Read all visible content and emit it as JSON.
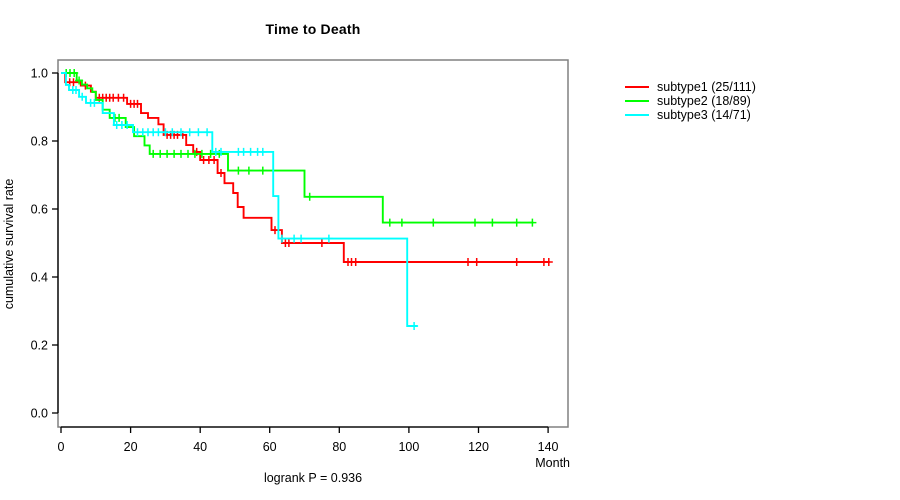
{
  "chart_data": {
    "type": "line",
    "subtype": "kaplan-meier-step",
    "title": "Time to Death",
    "xlabel": "Month",
    "ylabel": "cumulative survival rate",
    "annotation": "logrank P = 0.936",
    "grid": false,
    "legend_position": "right-outside",
    "xlim": [
      0,
      146
    ],
    "ylim": [
      0,
      1.0
    ],
    "x_ticks": [
      0,
      20,
      40,
      60,
      80,
      100,
      120,
      140
    ],
    "y_ticks": [
      0.0,
      0.2,
      0.4,
      0.6,
      0.8,
      1.0
    ],
    "axis_color": "#000000",
    "box_color": "#808080",
    "series": [
      {
        "name": "subtype1",
        "label": "subtype1 (25/111)",
        "color": "#ff0000",
        "events": 25,
        "n": 111,
        "end": 140.5,
        "steps": [
          [
            0,
            1.0
          ],
          [
            1.2,
            0.973
          ],
          [
            5.7,
            0.963
          ],
          [
            8.6,
            0.945
          ],
          [
            10,
            0.927
          ],
          [
            19,
            0.909
          ],
          [
            23,
            0.882
          ],
          [
            25,
            0.868
          ],
          [
            28,
            0.849
          ],
          [
            29.5,
            0.818
          ],
          [
            36,
            0.788
          ],
          [
            38,
            0.768
          ],
          [
            40,
            0.744
          ],
          [
            45,
            0.706
          ],
          [
            47,
            0.676
          ],
          [
            49.5,
            0.647
          ],
          [
            50.8,
            0.606
          ],
          [
            52.5,
            0.574
          ],
          [
            60.5,
            0.538
          ],
          [
            63.5,
            0.5
          ],
          [
            81.3,
            0.444
          ]
        ],
        "censors": [
          [
            2.5,
            0.973
          ],
          [
            3.6,
            0.973
          ],
          [
            7,
            0.963
          ],
          [
            11,
            0.927
          ],
          [
            12,
            0.927
          ],
          [
            13,
            0.927
          ],
          [
            14,
            0.927
          ],
          [
            15,
            0.927
          ],
          [
            16.5,
            0.927
          ],
          [
            18,
            0.927
          ],
          [
            20,
            0.909
          ],
          [
            21,
            0.909
          ],
          [
            22,
            0.909
          ],
          [
            30.5,
            0.818
          ],
          [
            31.5,
            0.818
          ],
          [
            32.5,
            0.818
          ],
          [
            33.5,
            0.818
          ],
          [
            35,
            0.818
          ],
          [
            39,
            0.768
          ],
          [
            41,
            0.744
          ],
          [
            42.5,
            0.744
          ],
          [
            44,
            0.744
          ],
          [
            46,
            0.706
          ],
          [
            61.5,
            0.538
          ],
          [
            64.5,
            0.5
          ],
          [
            65.5,
            0.5
          ],
          [
            75,
            0.5
          ],
          [
            82.5,
            0.444
          ],
          [
            83.5,
            0.444
          ],
          [
            84.7,
            0.444
          ],
          [
            117,
            0.444
          ],
          [
            119.5,
            0.444
          ],
          [
            131,
            0.444
          ],
          [
            138.8,
            0.444
          ],
          [
            140.2,
            0.444
          ]
        ]
      },
      {
        "name": "subtype2",
        "label": "subtype2 (18/89)",
        "color": "#00ff00",
        "events": 18,
        "n": 89,
        "end": 135.8,
        "steps": [
          [
            0,
            1.0
          ],
          [
            4.5,
            0.978
          ],
          [
            6,
            0.966
          ],
          [
            7.5,
            0.955
          ],
          [
            9,
            0.944
          ],
          [
            10,
            0.921
          ],
          [
            12,
            0.892
          ],
          [
            14,
            0.868
          ],
          [
            18.6,
            0.841
          ],
          [
            21,
            0.814
          ],
          [
            24,
            0.787
          ],
          [
            25.5,
            0.762
          ],
          [
            48,
            0.713
          ],
          [
            70,
            0.636
          ],
          [
            92.5,
            0.56
          ]
        ],
        "censors": [
          [
            1.5,
            1.0
          ],
          [
            2.6,
            1.0
          ],
          [
            3.8,
            1.0
          ],
          [
            5.2,
            0.978
          ],
          [
            15.5,
            0.868
          ],
          [
            16.7,
            0.868
          ],
          [
            26.5,
            0.762
          ],
          [
            28.5,
            0.762
          ],
          [
            30.5,
            0.762
          ],
          [
            32.5,
            0.762
          ],
          [
            34.5,
            0.762
          ],
          [
            36.5,
            0.762
          ],
          [
            38.5,
            0.762
          ],
          [
            40.5,
            0.762
          ],
          [
            43,
            0.762
          ],
          [
            45.5,
            0.762
          ],
          [
            51,
            0.713
          ],
          [
            54,
            0.713
          ],
          [
            58,
            0.713
          ],
          [
            71.5,
            0.636
          ],
          [
            94.5,
            0.56
          ],
          [
            98,
            0.56
          ],
          [
            107,
            0.56
          ],
          [
            119,
            0.56
          ],
          [
            124,
            0.56
          ],
          [
            131,
            0.56
          ],
          [
            135.5,
            0.56
          ]
        ]
      },
      {
        "name": "subtype3",
        "label": "subtype3 (14/71)",
        "color": "#00ffff",
        "events": 14,
        "n": 71,
        "end": 102.5,
        "steps": [
          [
            0,
            1.0
          ],
          [
            1.4,
            0.965
          ],
          [
            2.3,
            0.95
          ],
          [
            5.2,
            0.93
          ],
          [
            7.2,
            0.912
          ],
          [
            12,
            0.882
          ],
          [
            15.2,
            0.847
          ],
          [
            20.7,
            0.826
          ],
          [
            43.5,
            0.768
          ],
          [
            61,
            0.638
          ],
          [
            62.5,
            0.513
          ],
          [
            99.5,
            0.256
          ]
        ],
        "censors": [
          [
            3.4,
            0.95
          ],
          [
            4.3,
            0.95
          ],
          [
            6.1,
            0.93
          ],
          [
            8.5,
            0.912
          ],
          [
            9.6,
            0.912
          ],
          [
            16,
            0.847
          ],
          [
            17.5,
            0.847
          ],
          [
            19,
            0.847
          ],
          [
            22,
            0.826
          ],
          [
            23.5,
            0.826
          ],
          [
            25,
            0.826
          ],
          [
            26.5,
            0.826
          ],
          [
            28,
            0.826
          ],
          [
            30,
            0.826
          ],
          [
            32,
            0.826
          ],
          [
            34.5,
            0.826
          ],
          [
            37,
            0.826
          ],
          [
            39.5,
            0.826
          ],
          [
            42,
            0.826
          ],
          [
            44.5,
            0.768
          ],
          [
            46,
            0.768
          ],
          [
            51,
            0.768
          ],
          [
            52.5,
            0.768
          ],
          [
            54.5,
            0.768
          ],
          [
            56.5,
            0.768
          ],
          [
            58,
            0.768
          ],
          [
            63.5,
            0.513
          ],
          [
            67,
            0.513
          ],
          [
            69,
            0.513
          ],
          [
            77,
            0.513
          ],
          [
            101.5,
            0.256
          ]
        ]
      }
    ]
  }
}
